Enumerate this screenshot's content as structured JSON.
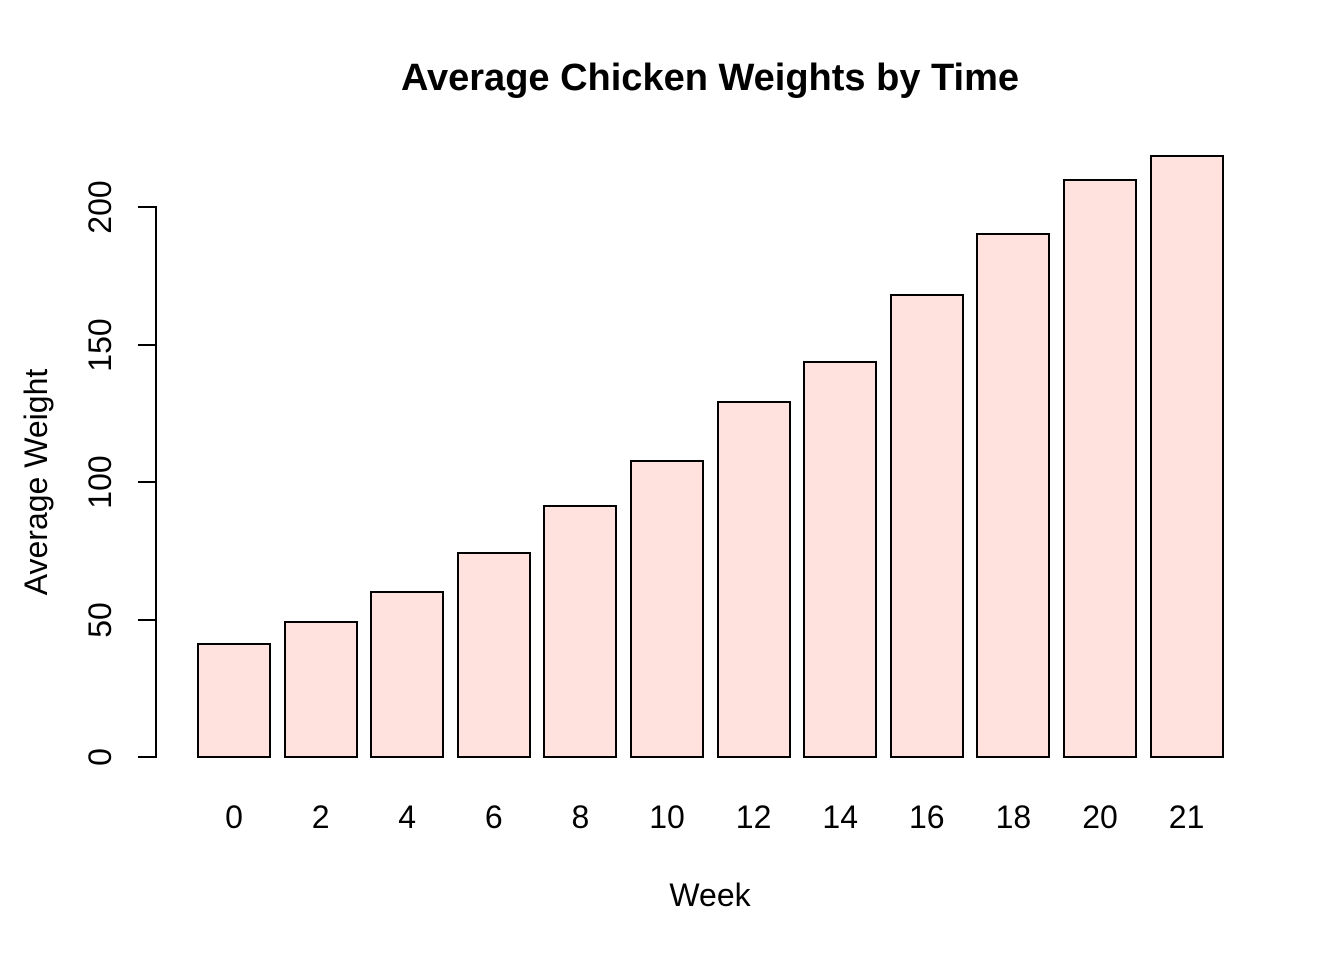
{
  "chart_data": {
    "type": "bar",
    "title": "Average Chicken Weights by Time",
    "xlabel": "Week",
    "ylabel": "Average Weight",
    "categories": [
      "0",
      "2",
      "4",
      "6",
      "8",
      "10",
      "12",
      "14",
      "16",
      "18",
      "20",
      "21"
    ],
    "values": [
      41.1,
      49.2,
      60.0,
      74.3,
      91.3,
      107.8,
      129.2,
      143.8,
      168.1,
      190.2,
      209.7,
      218.7
    ],
    "yticks": [
      0,
      50,
      100,
      150,
      200
    ],
    "ylim": [
      0,
      220
    ],
    "grid": false,
    "legend": null,
    "bar_fill": "#ffe1de",
    "bar_border": "#000000",
    "axis_color": "#000000",
    "text_color": "#000000",
    "background": "#ffffff"
  }
}
